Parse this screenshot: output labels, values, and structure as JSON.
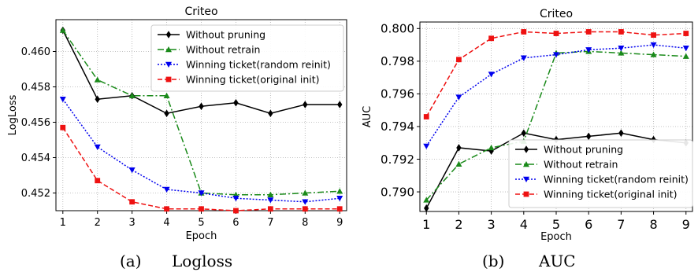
{
  "captions": {
    "a_tag": "(a)",
    "a_text": "Logloss",
    "b_tag": "(b)",
    "b_text": "AUC"
  },
  "chart_data": [
    {
      "type": "line",
      "title": "Criteo",
      "xlabel": "Epoch",
      "ylabel": "LogLoss",
      "x": [
        1,
        2,
        3,
        4,
        5,
        6,
        7,
        8,
        9
      ],
      "xlim": [
        0.8,
        9.2
      ],
      "ylim": [
        0.451,
        0.4618
      ],
      "yticks": [
        0.452,
        0.454,
        0.456,
        0.458,
        0.46
      ],
      "ytick_labels": [
        "0.452",
        "0.454",
        "0.456",
        "0.458",
        "0.460"
      ],
      "grid": true,
      "legend_position": "upper-right",
      "series": [
        {
          "name": "Without pruning",
          "color": "#000000",
          "marker": "diamond",
          "dash": "solid",
          "values": [
            0.4612,
            0.4573,
            0.4575,
            0.4565,
            0.4569,
            0.4571,
            0.4565,
            0.457,
            0.457
          ]
        },
        {
          "name": "Without retrain",
          "color": "#1a8a1a",
          "marker": "triangle-up",
          "dash": "dashdot",
          "values": [
            0.4612,
            0.4584,
            0.4575,
            0.4575,
            0.452,
            0.4519,
            0.4519,
            0.452,
            0.4521
          ]
        },
        {
          "name": "Winning ticket(random reinit)",
          "color": "#0000ee",
          "marker": "triangle-down",
          "dash": "dotted",
          "values": [
            0.4573,
            0.4546,
            0.4533,
            0.4522,
            0.452,
            0.4517,
            0.4516,
            0.4515,
            0.4517
          ]
        },
        {
          "name": "Winning ticket(original init)",
          "color": "#ee1111",
          "marker": "square",
          "dash": "dashed",
          "values": [
            0.4557,
            0.4527,
            0.4515,
            0.4511,
            0.4511,
            0.451,
            0.4511,
            0.4511,
            0.4511
          ]
        }
      ]
    },
    {
      "type": "line",
      "title": "Criteo",
      "xlabel": "Epoch",
      "ylabel": "AUC",
      "x": [
        1,
        2,
        3,
        4,
        5,
        6,
        7,
        8,
        9
      ],
      "xlim": [
        0.8,
        9.2
      ],
      "ylim": [
        0.7888,
        0.8004
      ],
      "yticks": [
        0.79,
        0.792,
        0.794,
        0.796,
        0.798,
        0.8
      ],
      "ytick_labels": [
        "0.790",
        "0.792",
        "0.794",
        "0.796",
        "0.798",
        "0.800"
      ],
      "grid": true,
      "legend_position": "lower-right",
      "series": [
        {
          "name": "Without pruning",
          "color": "#000000",
          "marker": "diamond",
          "dash": "solid",
          "values": [
            0.789,
            0.7927,
            0.7925,
            0.7936,
            0.7932,
            0.7934,
            0.7936,
            0.7932,
            0.793
          ]
        },
        {
          "name": "Without retrain",
          "color": "#1a8a1a",
          "marker": "triangle-up",
          "dash": "dashdot",
          "values": [
            0.7895,
            0.7917,
            0.7927,
            0.7931,
            0.7985,
            0.7986,
            0.7985,
            0.7984,
            0.7983
          ]
        },
        {
          "name": "Winning ticket(random reinit)",
          "color": "#0000ee",
          "marker": "triangle-down",
          "dash": "dotted",
          "values": [
            0.7928,
            0.7958,
            0.7972,
            0.7982,
            0.7984,
            0.7987,
            0.7988,
            0.799,
            0.7988
          ]
        },
        {
          "name": "Winning ticket(original init)",
          "color": "#ee1111",
          "marker": "square",
          "dash": "dashed",
          "values": [
            0.7946,
            0.7981,
            0.7994,
            0.7998,
            0.7997,
            0.7998,
            0.7998,
            0.7996,
            0.7997
          ]
        }
      ]
    }
  ]
}
